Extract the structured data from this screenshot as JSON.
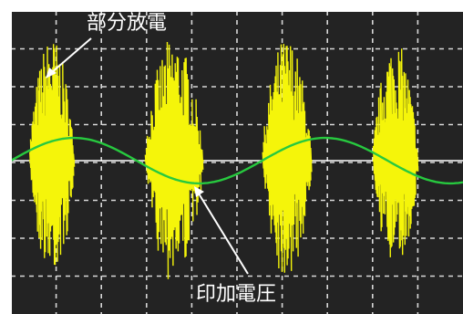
{
  "chart_data": {
    "type": "line",
    "title": "",
    "xlabel": "",
    "ylabel": "",
    "grid": true,
    "divisions": {
      "x": 10,
      "y": 8
    },
    "xlim": [
      0,
      10
    ],
    "ylim": [
      -4,
      4
    ],
    "annotations": [
      {
        "text": "部分放電",
        "target": "pd-burst-1"
      },
      {
        "text": "印加電圧",
        "target": "sine-trough"
      }
    ],
    "series": [
      {
        "color": "#27c93f",
        "shape": "sine",
        "amplitude_div": 0.6,
        "cycles": 1.8,
        "phase_start": 0
      },
      {
        "color": "#f5f50a",
        "shape": "pulse-bursts",
        "bursts": [
          {
            "center_div": 0.9,
            "width_div": 1.0,
            "peak_div": 3.3
          },
          {
            "center_div": 3.6,
            "width_div": 1.3,
            "peak_div": 3.3
          },
          {
            "center_div": 6.1,
            "width_div": 1.1,
            "peak_div": 3.3
          },
          {
            "center_div": 8.5,
            "width_div": 1.0,
            "peak_div": 3.2
          }
        ]
      }
    ],
    "baseline_color": "#ffffff"
  },
  "colors": {
    "screen_bg": "#232323",
    "grid": "#d8d8d8",
    "frame": "#ffffff"
  }
}
